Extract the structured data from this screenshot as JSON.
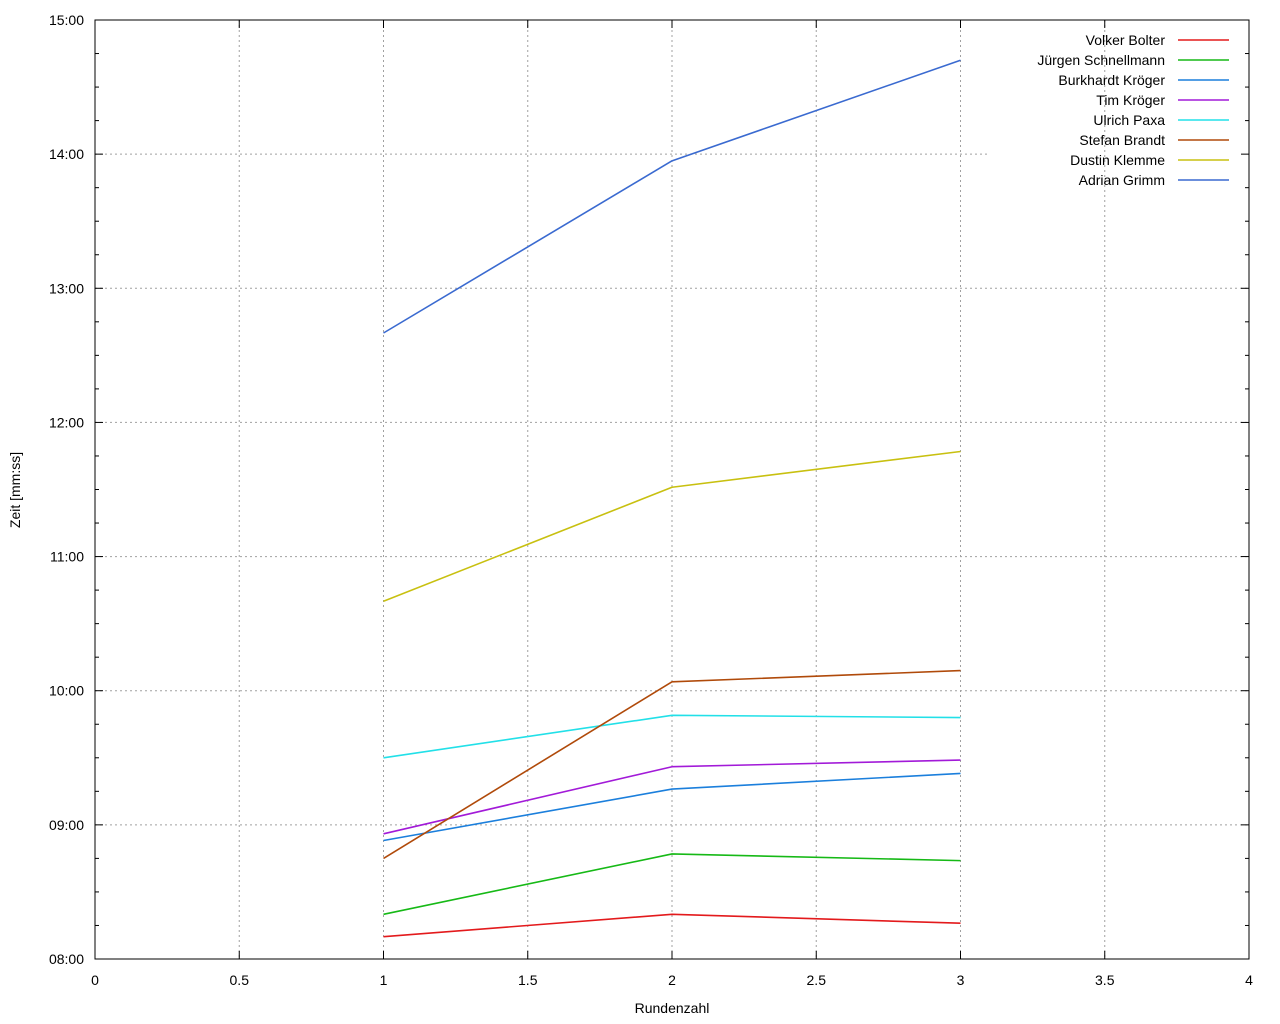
{
  "chart_data": {
    "type": "line",
    "title": "",
    "xlabel": "Rundenzahl",
    "ylabel": "Zeit [mm:ss]",
    "xlim": [
      0,
      4
    ],
    "ylim": [
      480,
      900
    ],
    "xticks": [
      0,
      0.5,
      1,
      1.5,
      2,
      2.5,
      3,
      3.5,
      4
    ],
    "xtick_labels": [
      "0",
      "0.5",
      "1",
      "1.5",
      "2",
      "2.5",
      "3",
      "3.5",
      "4"
    ],
    "yticks": [
      480,
      540,
      600,
      660,
      720,
      780,
      840,
      900
    ],
    "ytick_labels": [
      "08:00",
      "09:00",
      "10:00",
      "11:00",
      "12:00",
      "13:00",
      "14:00",
      "15:00"
    ],
    "grid": true,
    "legend_position": "top-right",
    "x": [
      1,
      2,
      3
    ],
    "series": [
      {
        "name": "Volker Bolter",
        "color": "#e31a1c",
        "values": [
          490,
          500,
          496
        ]
      },
      {
        "name": "Jürgen Schnellmann",
        "color": "#16b916",
        "values": [
          500,
          527,
          524
        ]
      },
      {
        "name": "Burkhardt Kröger",
        "color": "#1b7fdc",
        "values": [
          533,
          556,
          563
        ]
      },
      {
        "name": "Tim Kröger",
        "color": "#a21ad8",
        "values": [
          536,
          566,
          569
        ]
      },
      {
        "name": "Ulrich Paxa",
        "color": "#22e0e8",
        "values": [
          570,
          589,
          588
        ]
      },
      {
        "name": "Stefan Brandt",
        "color": "#b04a0a",
        "values": [
          525,
          604,
          609
        ]
      },
      {
        "name": "Dustin Klemme",
        "color": "#c8c010",
        "values": [
          640,
          691,
          707
        ]
      },
      {
        "name": "Adrian Grimm",
        "color": "#3a6ad0",
        "values": [
          760,
          837,
          882
        ]
      }
    ]
  }
}
